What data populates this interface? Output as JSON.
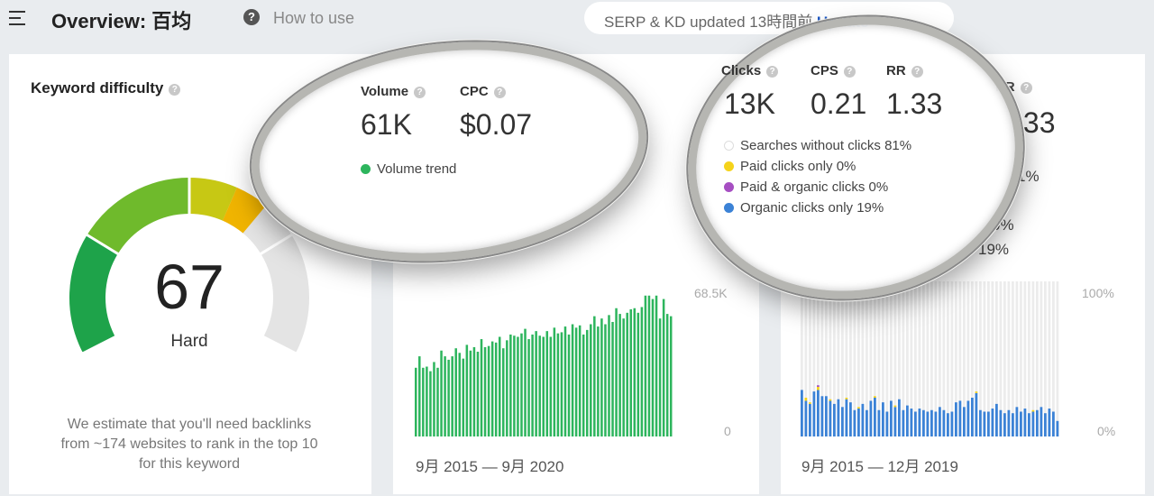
{
  "header": {
    "title": "Overview: 百均",
    "help": "?",
    "how_to_use": "How to use",
    "serp_status": "SERP & KD updated 13時間前",
    "update_label": "Update"
  },
  "kd": {
    "title": "Keyword difficulty",
    "score": "67",
    "score_value": 67,
    "level": "Hard",
    "description_lines": [
      "We estimate that you'll need backlinks",
      "from ~174 websites to rank in the top 10",
      "for this keyword"
    ]
  },
  "volume_card": {
    "volume_label": "Volume",
    "volume_value": "61K",
    "cpc_label": "CPC",
    "cpc_value": "$0.07",
    "trend_legend": "Volume trend",
    "trend_color": "#2db55d",
    "date_range": "9月 2015 — 9月 2020"
  },
  "clicks_card": {
    "clicks_label": "Clicks",
    "clicks_value": "13K",
    "cps_label": "CPS",
    "cps_value": "0.21",
    "rr_label": "RR",
    "rr_value": "1.33",
    "legend": [
      {
        "label": "Searches without clicks 81%",
        "color": "#ffffff"
      },
      {
        "label": "Paid clicks only 0%",
        "color": "#f5d31b"
      },
      {
        "label": "Paid & organic clicks 0%",
        "color": "#a64ec2"
      },
      {
        "label": "Organic clicks only 19%",
        "color": "#3b82d6"
      }
    ],
    "behind_rr": "RR",
    "behind_value": ".33",
    "behind_pct_a": "1%",
    "behind_pct_b": "0%",
    "behind_pct_c": "19%",
    "date_range": "9月 2015 — 12月 2019"
  },
  "chart_data": [
    {
      "type": "bar",
      "title": "",
      "xlabel": "",
      "ylabel": "",
      "ytick_labels": [
        "68.5K",
        "0"
      ],
      "ylim": [
        0,
        68500
      ],
      "x_range": [
        "9月 2015",
        "9月 2020"
      ],
      "series": [
        {
          "color": "#2db55d",
          "values": [
            30000,
            35000,
            30000,
            30500,
            28500,
            32500,
            30000,
            37500,
            35000,
            33500,
            35000,
            38500,
            36500,
            34000,
            40000,
            37500,
            39000,
            37000,
            42500,
            39000,
            39500,
            41500,
            41000,
            43500,
            38500,
            42000,
            44500,
            44000,
            43500,
            45000,
            47000,
            42500,
            44500,
            46000,
            44000,
            43500,
            46000,
            43500,
            47500,
            45000,
            45500,
            48000,
            44500,
            49000,
            47500,
            48500,
            44500,
            46500,
            49000,
            52500,
            48000,
            51500,
            49000,
            53000,
            50000,
            56000,
            53500,
            51500,
            54000,
            55500,
            56000,
            54000,
            56500,
            61500,
            61500,
            60000,
            61500,
            51500,
            60000,
            53500,
            52500
          ]
        }
      ]
    },
    {
      "type": "bar",
      "title": "",
      "xlabel": "",
      "ylabel": "",
      "ytick_labels": [
        "100%",
        "0%"
      ],
      "ylim": [
        0,
        100
      ],
      "x_range": [
        "9月 2015",
        "12月 2019"
      ],
      "series": [
        {
          "name": "Organic clicks only",
          "color": "#3b82d6",
          "values": [
            30,
            23,
            21,
            29,
            30,
            26,
            26,
            23,
            21,
            24,
            19,
            24,
            22,
            17,
            18,
            21,
            17,
            23,
            25,
            17,
            22,
            16,
            23,
            19,
            24,
            17,
            20,
            18,
            16,
            18,
            17,
            16,
            17,
            16,
            19,
            17,
            15,
            16,
            22,
            23,
            19,
            23,
            25,
            28,
            17,
            16,
            16,
            18,
            21,
            17,
            15,
            17,
            15,
            19,
            16,
            18,
            15,
            16,
            17,
            19,
            15,
            18,
            16,
            10
          ]
        },
        {
          "name": "Paid clicks only",
          "color": "#f5d31b",
          "values": [
            0,
            2,
            1,
            0,
            2,
            0,
            0,
            1,
            0,
            0,
            0,
            1,
            0,
            0,
            1,
            0,
            0,
            0,
            1,
            0,
            0,
            0,
            0,
            1,
            0,
            0,
            0,
            0,
            0,
            0,
            0,
            0,
            0,
            0,
            0,
            0,
            0,
            0,
            0,
            0,
            0,
            0,
            0,
            1,
            0,
            0,
            0,
            0,
            0,
            0,
            0,
            0,
            0,
            0,
            0,
            0,
            0,
            1,
            0,
            0,
            0,
            0,
            0,
            0
          ]
        },
        {
          "name": "Paid & organic clicks",
          "color": "#a64ec2",
          "values": [
            0,
            0,
            0,
            0,
            1,
            0,
            0,
            0,
            0,
            0,
            0,
            0,
            0,
            0,
            0,
            0,
            0,
            0,
            0,
            0,
            0,
            0,
            0,
            0,
            0,
            0,
            0,
            0,
            0,
            0,
            0,
            0,
            0,
            0,
            0,
            0,
            0,
            0,
            0,
            0,
            0,
            0,
            0,
            0,
            0,
            0,
            0,
            0,
            0,
            0,
            0,
            0,
            0,
            0,
            0,
            0,
            0,
            0,
            0,
            0,
            0,
            0,
            0,
            0
          ]
        }
      ]
    }
  ]
}
